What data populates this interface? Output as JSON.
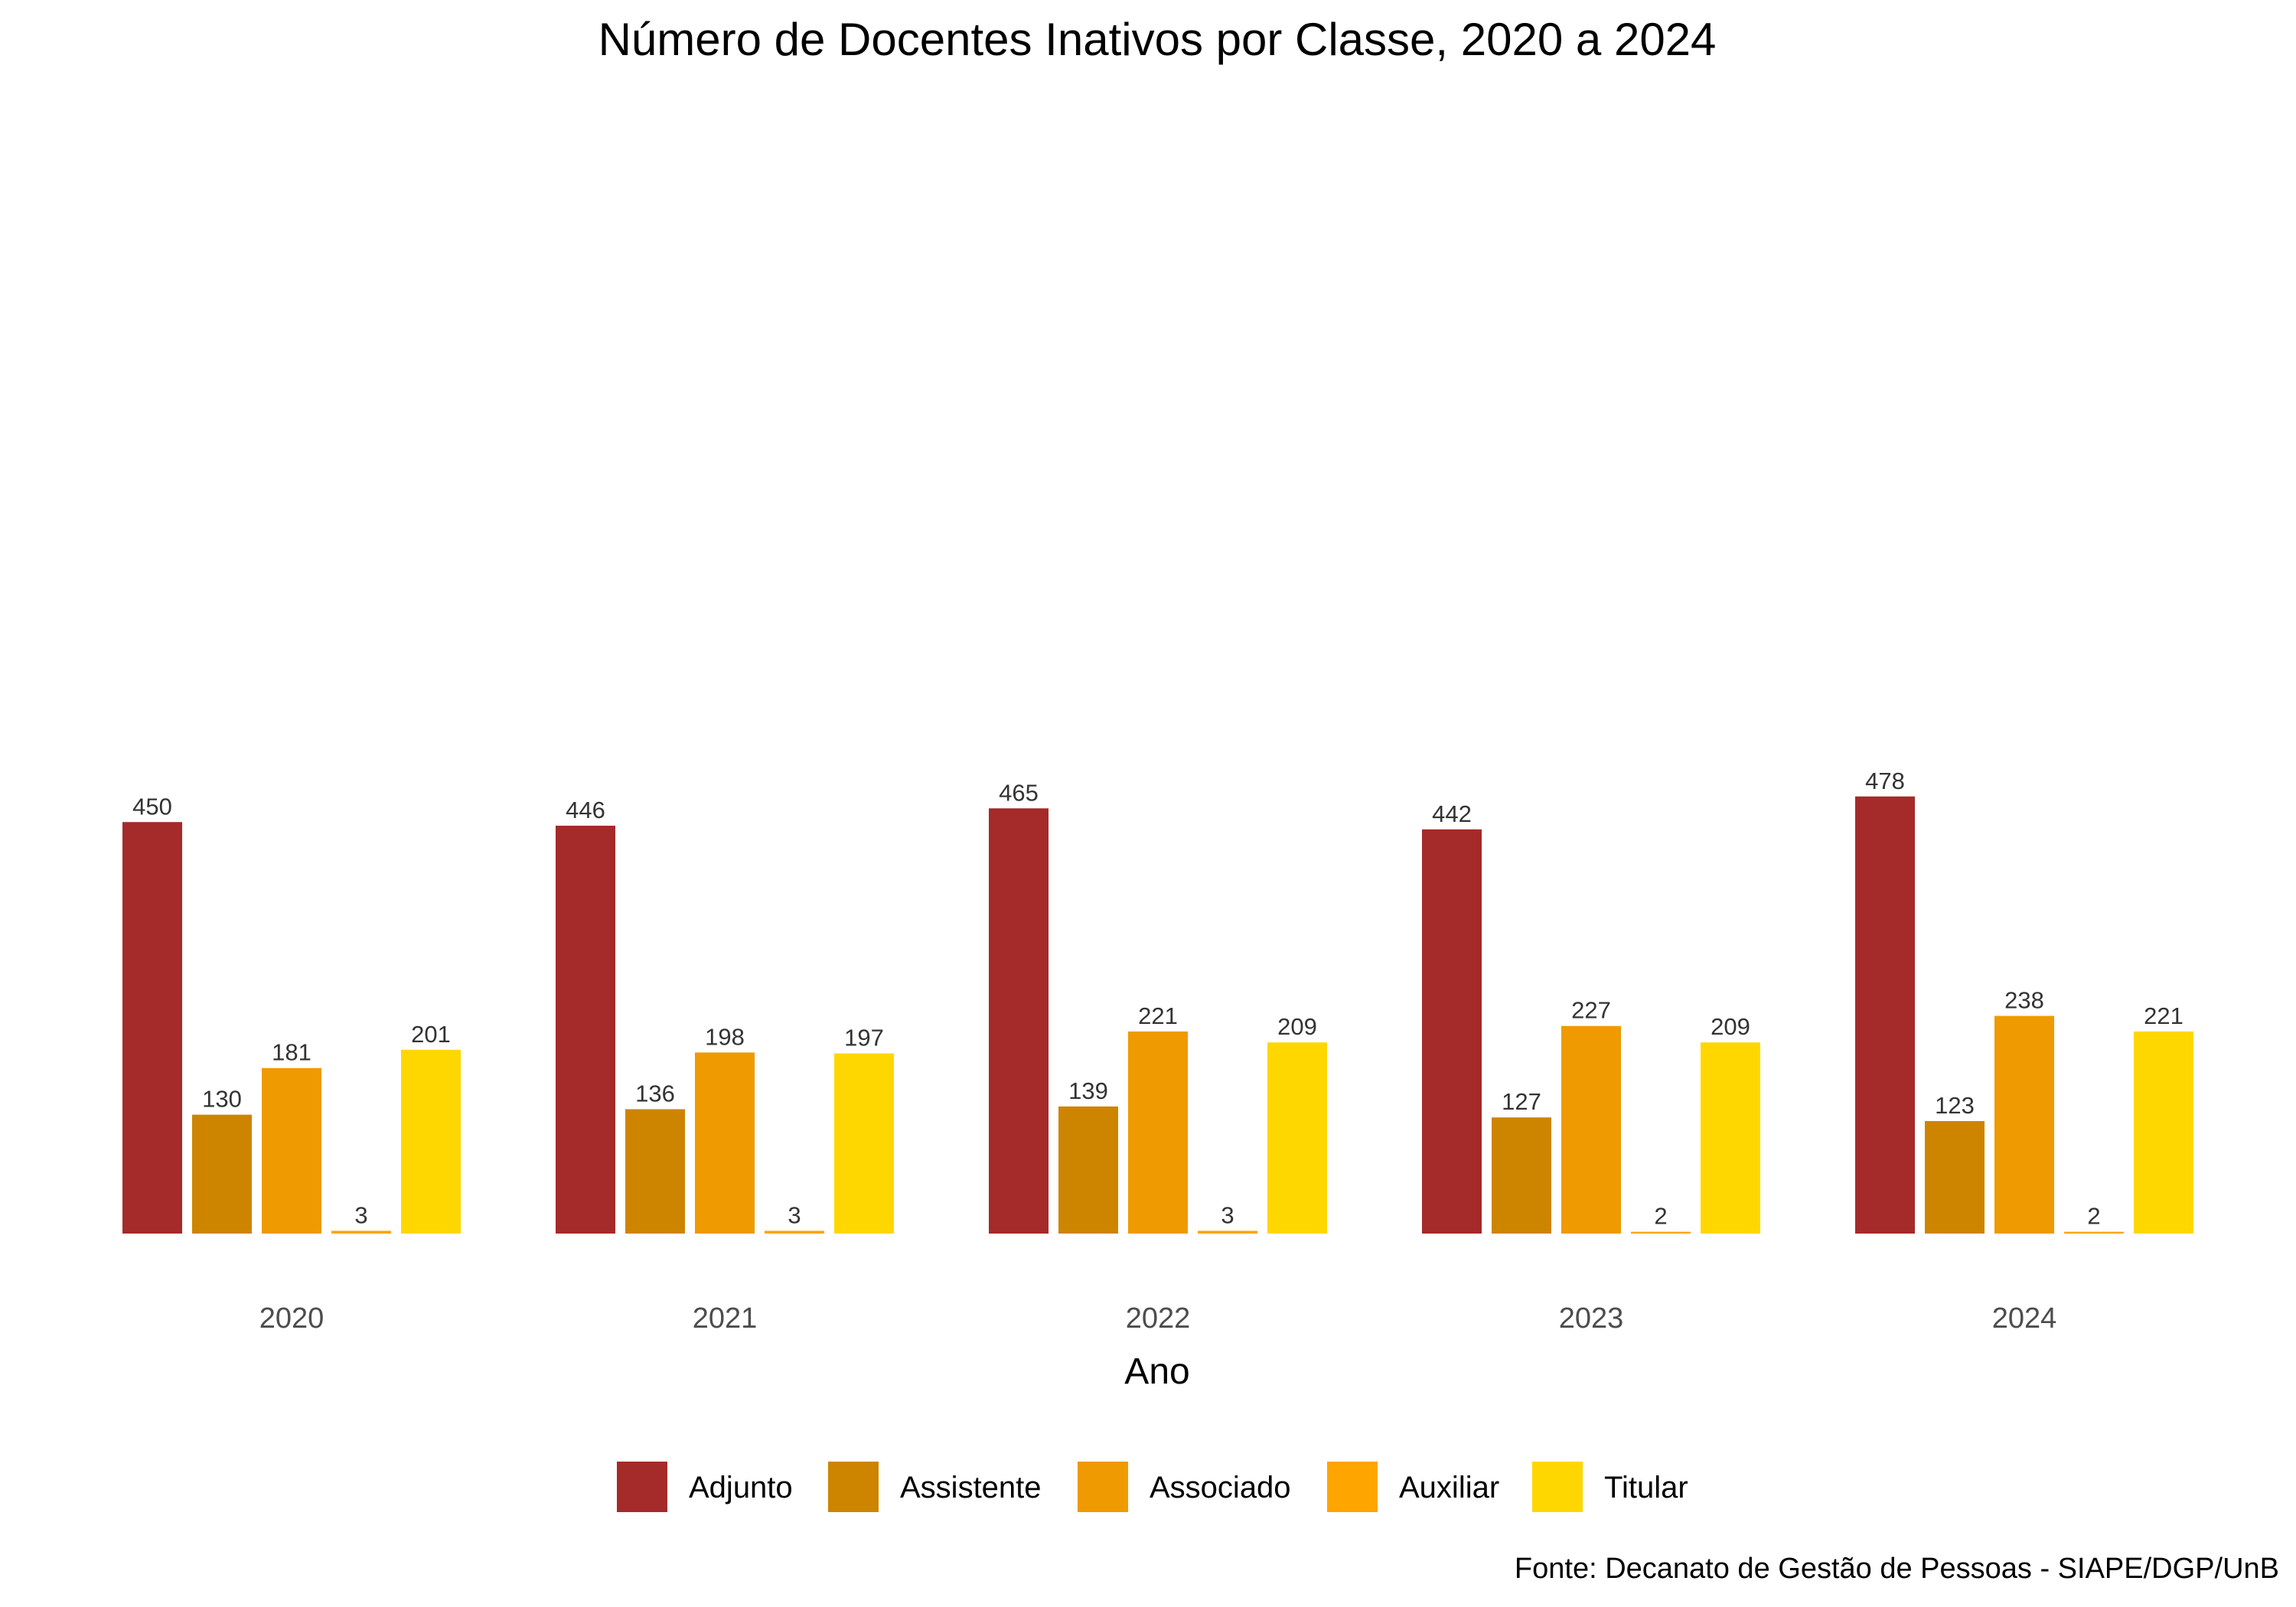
{
  "chart_data": {
    "type": "bar",
    "title": "Número de Docentes Inativos por Classe, 2020 a 2024",
    "xlabel": "Ano",
    "ylabel": "",
    "categories": [
      "2020",
      "2021",
      "2022",
      "2023",
      "2024"
    ],
    "series": [
      {
        "name": "Adjunto",
        "color": "#A52A2A",
        "values": [
          450,
          446,
          465,
          442,
          478
        ]
      },
      {
        "name": "Assistente",
        "color": "#CD8500",
        "values": [
          130,
          136,
          139,
          127,
          123
        ]
      },
      {
        "name": "Associado",
        "color": "#EE9A00",
        "values": [
          181,
          198,
          221,
          227,
          238
        ]
      },
      {
        "name": "Auxiliar",
        "color": "#FFA500",
        "values": [
          3,
          3,
          3,
          2,
          2
        ]
      },
      {
        "name": "Titular",
        "color": "#FFD700",
        "values": [
          201,
          197,
          209,
          209,
          221
        ]
      }
    ],
    "ylim": [
      0,
      1300
    ],
    "grid": false,
    "legend_position": "bottom",
    "caption": "Fonte: Decanato de Gestão de Pessoas - SIAPE/DGP/UnB"
  }
}
